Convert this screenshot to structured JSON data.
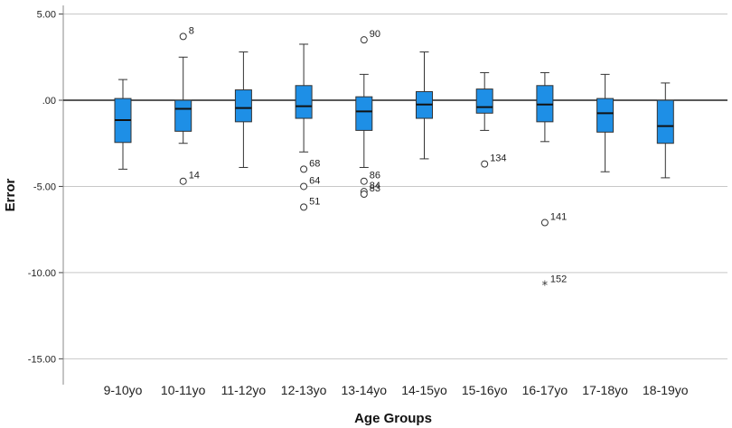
{
  "chart_data": {
    "type": "boxplot",
    "title": "",
    "xlabel": "Age Groups",
    "ylabel": "Error",
    "ylim": [
      -16.5,
      5.5
    ],
    "yticks": [
      5,
      0,
      -5,
      -10,
      -15
    ],
    "ytick_labels": [
      "5.00",
      ".00",
      "-5.00",
      "-10.00",
      "-15.00"
    ],
    "reference_line": 0,
    "grid": true,
    "box_color": "#1e8fe6",
    "categories": [
      "9-10yo",
      "10-11yo",
      "11-12yo",
      "12-13yo",
      "13-14yo",
      "14-15yo",
      "15-16yo",
      "16-17yo",
      "17-18yo",
      "18-19yo"
    ],
    "boxes": [
      {
        "min": -4.0,
        "q1": -2.45,
        "median": -1.15,
        "q3": 0.1,
        "max": 1.2,
        "outliers": []
      },
      {
        "min": -2.5,
        "q1": -1.8,
        "median": -0.5,
        "q3": 0.0,
        "max": 2.5,
        "outliers": [
          {
            "value": 3.7,
            "label": "8",
            "marker": "circle"
          },
          {
            "value": -4.7,
            "label": "14",
            "marker": "circle"
          }
        ]
      },
      {
        "min": -3.9,
        "q1": -1.25,
        "median": -0.45,
        "q3": 0.6,
        "max": 2.8,
        "outliers": []
      },
      {
        "min": -3.0,
        "q1": -1.05,
        "median": -0.35,
        "q3": 0.85,
        "max": 3.25,
        "outliers": [
          {
            "value": -4.0,
            "label": "68",
            "marker": "circle"
          },
          {
            "value": -5.0,
            "label": "64",
            "marker": "circle"
          },
          {
            "value": -6.2,
            "label": "51",
            "marker": "circle"
          }
        ]
      },
      {
        "min": -3.9,
        "q1": -1.75,
        "median": -0.65,
        "q3": 0.2,
        "max": 1.5,
        "outliers": [
          {
            "value": 3.5,
            "label": "90",
            "marker": "circle"
          },
          {
            "value": -4.7,
            "label": "86",
            "marker": "circle"
          },
          {
            "value": -5.3,
            "label": "84",
            "marker": "circle"
          },
          {
            "value": -5.45,
            "label": "83",
            "marker": "circle"
          }
        ]
      },
      {
        "min": -3.4,
        "q1": -1.05,
        "median": -0.25,
        "q3": 0.5,
        "max": 2.8,
        "outliers": []
      },
      {
        "min": -1.75,
        "q1": -0.75,
        "median": -0.4,
        "q3": 0.65,
        "max": 1.6,
        "outliers": [
          {
            "value": -3.7,
            "label": "134",
            "marker": "circle"
          }
        ]
      },
      {
        "min": -2.4,
        "q1": -1.25,
        "median": -0.25,
        "q3": 0.85,
        "max": 1.6,
        "outliers": [
          {
            "value": -7.1,
            "label": "141",
            "marker": "circle"
          },
          {
            "value": -10.7,
            "label": "152",
            "marker": "star"
          }
        ]
      },
      {
        "min": -4.15,
        "q1": -1.85,
        "median": -0.75,
        "q3": 0.1,
        "max": 1.5,
        "outliers": []
      },
      {
        "min": -4.5,
        "q1": -2.5,
        "median": -1.5,
        "q3": 0.0,
        "max": 1.0,
        "outliers": []
      }
    ]
  }
}
